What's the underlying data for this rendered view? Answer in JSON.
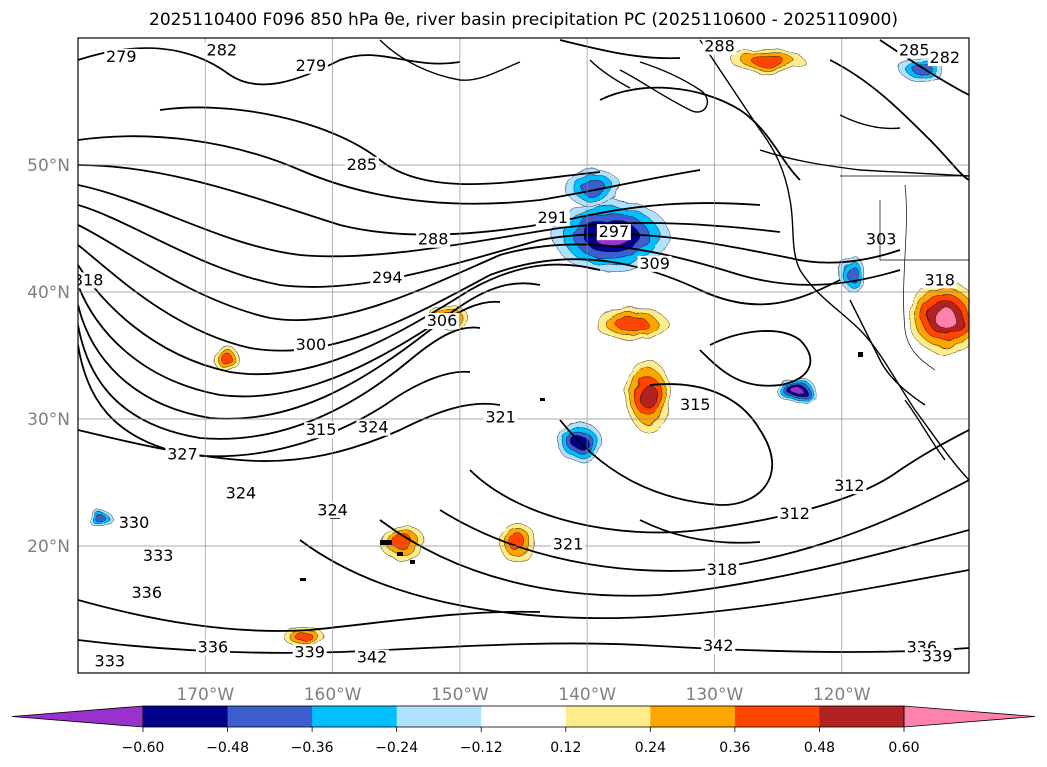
{
  "title": "2025110400 F096 850 hPa θe, river basin precipitation PC (2025110600 - 2025110900)",
  "chart_data": {
    "type": "map",
    "extent": {
      "lon_min": -180,
      "lon_max": -110,
      "lat_min": 10,
      "lat_max": 60
    },
    "grid": true,
    "longitude_ticks": [
      {
        "lon": -170,
        "label": "170°W"
      },
      {
        "lon": -160,
        "label": "160°W"
      },
      {
        "lon": -150,
        "label": "150°W"
      },
      {
        "lon": -140,
        "label": "140°W"
      },
      {
        "lon": -130,
        "label": "130°W"
      },
      {
        "lon": -120,
        "label": "120°W"
      }
    ],
    "latitude_ticks": [
      {
        "lat": 20,
        "label": "20°N"
      },
      {
        "lat": 30,
        "label": "30°N"
      },
      {
        "lat": 40,
        "label": "40°N"
      },
      {
        "lat": 50,
        "label": "50°N"
      }
    ],
    "contour_labels": [
      {
        "text": "279",
        "lon": -176.6,
        "lat": 58.2
      },
      {
        "text": "282",
        "lon": -168.7,
        "lat": 58.7
      },
      {
        "text": "279",
        "lon": -161.7,
        "lat": 57.5
      },
      {
        "text": "288",
        "lon": -129.6,
        "lat": 59.0
      },
      {
        "text": "285",
        "lon": -114.3,
        "lat": 58.7
      },
      {
        "text": "282",
        "lon": -111.9,
        "lat": 58.1
      },
      {
        "text": "285",
        "lon": -157.7,
        "lat": 49.7
      },
      {
        "text": "291",
        "lon": -142.7,
        "lat": 45.5
      },
      {
        "text": "297",
        "lon": -137.9,
        "lat": 44.4
      },
      {
        "text": "288",
        "lon": -152.1,
        "lat": 43.8
      },
      {
        "text": "303",
        "lon": -116.9,
        "lat": 43.8
      },
      {
        "text": "309",
        "lon": -134.7,
        "lat": 41.9
      },
      {
        "text": "294",
        "lon": -155.7,
        "lat": 40.8
      },
      {
        "text": "318",
        "lon": -179.2,
        "lat": 40.6
      },
      {
        "text": "318",
        "lon": -112.3,
        "lat": 40.6
      },
      {
        "text": "306",
        "lon": -151.4,
        "lat": 37.4
      },
      {
        "text": "300",
        "lon": -161.7,
        "lat": 35.5
      },
      {
        "text": "315",
        "lon": -131.5,
        "lat": 30.8
      },
      {
        "text": "321",
        "lon": -146.8,
        "lat": 29.8
      },
      {
        "text": "324",
        "lon": -156.8,
        "lat": 29.0
      },
      {
        "text": "315",
        "lon": -160.9,
        "lat": 28.8
      },
      {
        "text": "327",
        "lon": -171.8,
        "lat": 26.9
      },
      {
        "text": "312",
        "lon": -119.4,
        "lat": 24.4
      },
      {
        "text": "324",
        "lon": -167.2,
        "lat": 23.8
      },
      {
        "text": "312",
        "lon": -123.7,
        "lat": 22.2
      },
      {
        "text": "324",
        "lon": -160.0,
        "lat": 22.5
      },
      {
        "text": "330",
        "lon": -175.6,
        "lat": 21.5
      },
      {
        "text": "333",
        "lon": -173.7,
        "lat": 18.9
      },
      {
        "text": "321",
        "lon": -141.5,
        "lat": 19.8
      },
      {
        "text": "318",
        "lon": -129.4,
        "lat": 17.8
      },
      {
        "text": "336",
        "lon": -174.6,
        "lat": 16.0
      },
      {
        "text": "336",
        "lon": -169.4,
        "lat": 11.7
      },
      {
        "text": "339",
        "lon": -161.8,
        "lat": 11.3
      },
      {
        "text": "342",
        "lon": -156.9,
        "lat": 10.9
      },
      {
        "text": "342",
        "lon": -129.7,
        "lat": 11.8
      },
      {
        "text": "336",
        "lon": -113.7,
        "lat": 11.7
      },
      {
        "text": "339",
        "lon": -112.5,
        "lat": 11.0
      },
      {
        "text": "333",
        "lon": -177.5,
        "lat": 10.6
      }
    ],
    "colorbar": {
      "colors": [
        "#9932cc",
        "#00008b",
        "#3a5fcd",
        "#00bfff",
        "#b0e2ff",
        "#ffffff",
        "#ffec8b",
        "#ffa500",
        "#ff4500",
        "#b22222",
        "#ff82ab"
      ],
      "tick_labels": [
        "−0.60",
        "−0.48",
        "−0.36",
        "−0.24",
        "−0.12",
        "0.12",
        "0.24",
        "0.36",
        "0.48",
        "0.60"
      ],
      "extend": "both"
    },
    "precip_blobs": [
      {
        "lon": -138.1,
        "lat": 44.4,
        "rx": 58,
        "ry": 36,
        "value": -0.6
      },
      {
        "lon": -139.5,
        "lat": 48.2,
        "rx": 28,
        "ry": 18,
        "value": -0.36
      },
      {
        "lon": -123.5,
        "lat": 32.2,
        "rx": 20,
        "ry": 12,
        "value": -0.6
      },
      {
        "lon": -140.6,
        "lat": 28.2,
        "rx": 22,
        "ry": 20,
        "value": -0.48
      },
      {
        "lon": -135.2,
        "lat": 31.8,
        "rx": 22,
        "ry": 36,
        "value": 0.48
      },
      {
        "lon": -136.5,
        "lat": 37.5,
        "rx": 36,
        "ry": 16,
        "value": 0.36
      },
      {
        "lon": -111.9,
        "lat": 38.0,
        "rx": 36,
        "ry": 36,
        "value": 0.6
      },
      {
        "lon": -125.8,
        "lat": 58.2,
        "rx": 36,
        "ry": 12,
        "value": 0.36
      },
      {
        "lon": -168.3,
        "lat": 34.7,
        "rx": 14,
        "ry": 11,
        "value": 0.36
      },
      {
        "lon": -150.8,
        "lat": 38.0,
        "rx": 18,
        "ry": 12,
        "value": 0.36
      },
      {
        "lon": -154.5,
        "lat": 20.3,
        "rx": 22,
        "ry": 18,
        "value": 0.36
      },
      {
        "lon": -145.5,
        "lat": 20.3,
        "rx": 18,
        "ry": 20,
        "value": 0.36
      },
      {
        "lon": -162.3,
        "lat": 12.9,
        "rx": 20,
        "ry": 10,
        "value": 0.36
      },
      {
        "lon": -178.2,
        "lat": 22.1,
        "rx": 12,
        "ry": 8,
        "value": -0.36
      },
      {
        "lon": -113.7,
        "lat": 57.6,
        "rx": 22,
        "ry": 14,
        "value": -0.36
      },
      {
        "lon": -119.2,
        "lat": 41.5,
        "rx": 12,
        "ry": 18,
        "value": -0.36
      }
    ]
  }
}
